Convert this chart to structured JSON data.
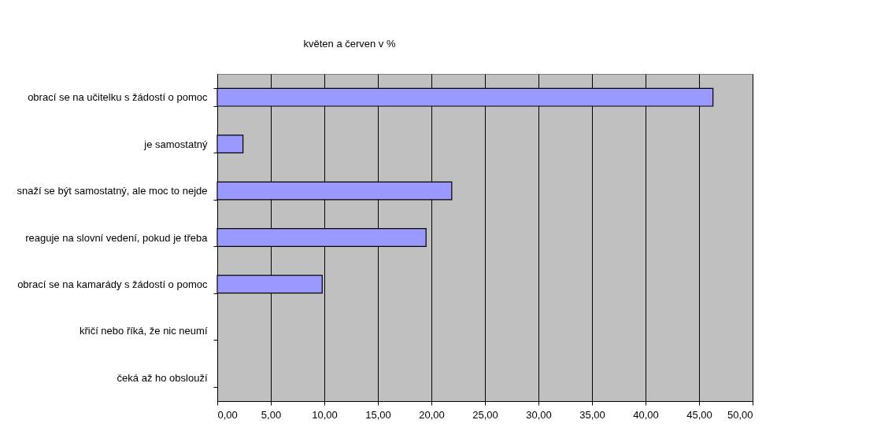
{
  "chart_data": {
    "type": "bar",
    "orientation": "horizontal",
    "title": "květen a červen v %",
    "categories": [
      "obrací se na učitelku s žádostí o pomoc",
      "je samostatný",
      "snaží se být samostatný, ale moc to nejde",
      "reaguje na slovní vedení, pokud je třeba",
      "obrací se na kamarády s žádostí o pomoc",
      "křičí nebo říká, že nic neumí",
      "čeká až ho obslouží"
    ],
    "values": [
      46.3,
      2.4,
      21.9,
      19.5,
      9.8,
      0,
      0
    ],
    "color": "#9999ff",
    "xlim": [
      0,
      50
    ],
    "xticks": [
      {
        "value": 0,
        "label": "0,00"
      },
      {
        "value": 5,
        "label": "5,00"
      },
      {
        "value": 10,
        "label": "10,00"
      },
      {
        "value": 15,
        "label": "15,00"
      },
      {
        "value": 20,
        "label": "20,00"
      },
      {
        "value": 25,
        "label": "25,00"
      },
      {
        "value": 30,
        "label": "30,00"
      },
      {
        "value": 35,
        "label": "35,00"
      },
      {
        "value": 40,
        "label": "40,00"
      },
      {
        "value": 45,
        "label": "45,00"
      },
      {
        "value": 50,
        "label": "50,00"
      }
    ],
    "grid": "x"
  }
}
